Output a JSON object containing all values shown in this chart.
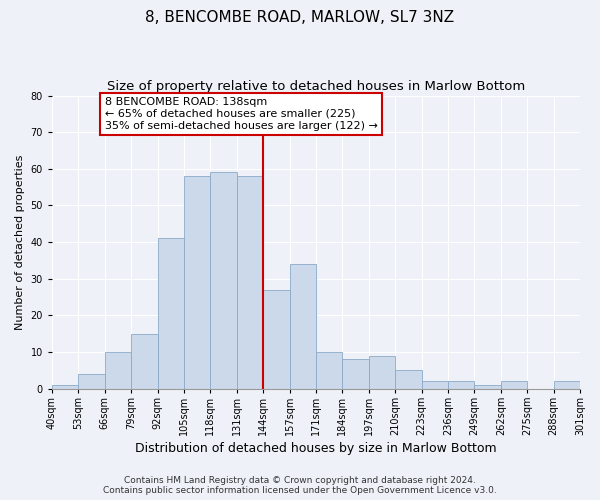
{
  "title": "8, BENCOMBE ROAD, MARLOW, SL7 3NZ",
  "subtitle": "Size of property relative to detached houses in Marlow Bottom",
  "xlabel": "Distribution of detached houses by size in Marlow Bottom",
  "ylabel": "Number of detached properties",
  "bin_labels": [
    "40sqm",
    "53sqm",
    "66sqm",
    "79sqm",
    "92sqm",
    "105sqm",
    "118sqm",
    "131sqm",
    "144sqm",
    "157sqm",
    "171sqm",
    "184sqm",
    "197sqm",
    "210sqm",
    "223sqm",
    "236sqm",
    "249sqm",
    "262sqm",
    "275sqm",
    "288sqm",
    "301sqm"
  ],
  "bar_heights": [
    1,
    4,
    10,
    15,
    41,
    58,
    59,
    58,
    27,
    34,
    10,
    8,
    9,
    5,
    2,
    2,
    1,
    2,
    0,
    2
  ],
  "bar_color": "#ccd9ea",
  "bar_edge_color": "#8aaac8",
  "vline_x_idx": 8,
  "vline_color": "#cc0000",
  "annotation_line1": "8 BENCOMBE ROAD: 138sqm",
  "annotation_line2": "← 65% of detached houses are smaller (225)",
  "annotation_line3": "35% of semi-detached houses are larger (122) →",
  "annotation_box_color": "#ffffff",
  "annotation_box_edge": "#cc0000",
  "ylim": [
    0,
    80
  ],
  "yticks": [
    0,
    10,
    20,
    30,
    40,
    50,
    60,
    70,
    80
  ],
  "footer_text": "Contains HM Land Registry data © Crown copyright and database right 2024.\nContains public sector information licensed under the Open Government Licence v3.0.",
  "background_color": "#eef2f8",
  "plot_background": "#eef2f8",
  "grid_color": "#ffffff",
  "title_fontsize": 11,
  "subtitle_fontsize": 9.5,
  "xlabel_fontsize": 9,
  "ylabel_fontsize": 8,
  "tick_fontsize": 7,
  "annotation_fontsize": 8,
  "footer_fontsize": 6.5
}
